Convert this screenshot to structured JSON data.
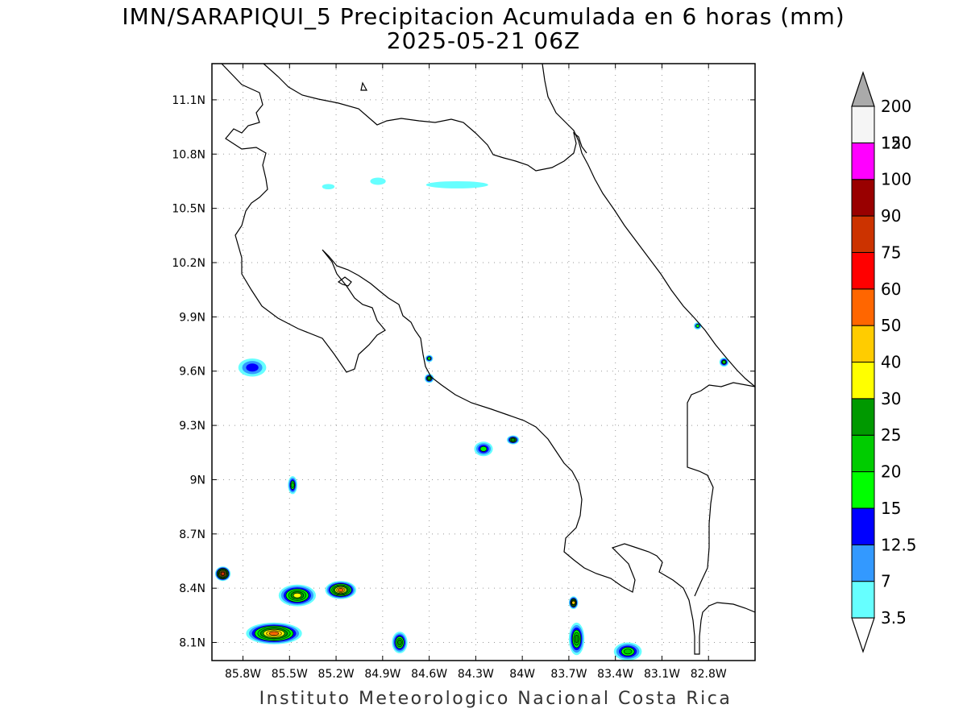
{
  "title": "IMN/SARAPIQUI_5 Precipitacion Acumulada en 6 horas (mm)",
  "subtitle": "2025-05-21 06Z",
  "footer": "Instituto Meteorologico Nacional Costa Rica",
  "map": {
    "lon_range": [
      -86.0,
      -82.5
    ],
    "lat_range": [
      8.0,
      11.3
    ],
    "lon_ticks": [
      {
        "value": -85.8,
        "label": "85.8W"
      },
      {
        "value": -85.5,
        "label": "85.5W"
      },
      {
        "value": -85.2,
        "label": "85.2W"
      },
      {
        "value": -84.9,
        "label": "84.9W"
      },
      {
        "value": -84.6,
        "label": "84.6W"
      },
      {
        "value": -84.3,
        "label": "84.3W"
      },
      {
        "value": -84.0,
        "label": "84W"
      },
      {
        "value": -83.7,
        "label": "83.7W"
      },
      {
        "value": -83.4,
        "label": "83.4W"
      },
      {
        "value": -83.1,
        "label": "83.1W"
      },
      {
        "value": -82.8,
        "label": "82.8W"
      }
    ],
    "lat_ticks": [
      {
        "value": 11.1,
        "label": "11.1N"
      },
      {
        "value": 10.8,
        "label": "10.8N"
      },
      {
        "value": 10.5,
        "label": "10.5N"
      },
      {
        "value": 10.2,
        "label": "10.2N"
      },
      {
        "value": 9.9,
        "label": "9.9N"
      },
      {
        "value": 9.6,
        "label": "9.6N"
      },
      {
        "value": 9.3,
        "label": "9.3N"
      },
      {
        "value": 9.0,
        "label": "9N"
      },
      {
        "value": 8.7,
        "label": "8.7N"
      },
      {
        "value": 8.4,
        "label": "8.4N"
      },
      {
        "value": 8.1,
        "label": "8.1N"
      }
    ],
    "grid": true
  },
  "colorbar": {
    "levels": [
      {
        "label": "3.5",
        "color": "#66ffff"
      },
      {
        "label": "7",
        "color": "#3399ff"
      },
      {
        "label": "12.5",
        "color": "#0000ff"
      },
      {
        "label": "15",
        "color": "#00ff00"
      },
      {
        "label": "20",
        "color": "#00cc00"
      },
      {
        "label": "25",
        "color": "#009900"
      },
      {
        "label": "30",
        "color": "#ffff00"
      },
      {
        "label": "40",
        "color": "#ffcc00"
      },
      {
        "label": "50",
        "color": "#ff6600"
      },
      {
        "label": "60",
        "color": "#ff0000"
      },
      {
        "label": "75",
        "color": "#cc3300"
      },
      {
        "label": "90",
        "color": "#990000"
      },
      {
        "label": "100",
        "color": "#ff00ff"
      },
      {
        "label": "120",
        "color": "#9933cc"
      },
      {
        "label": "150",
        "color": "#f5f5f5"
      },
      {
        "label": "200",
        "color": "#aaaaaa"
      }
    ]
  },
  "precip_areas": [
    {
      "lon": -85.72,
      "lat": 9.62,
      "rx": 0.06,
      "ry": 0.035,
      "level": 6
    },
    {
      "lon": -85.74,
      "lat": 9.62,
      "rx": 0.09,
      "ry": 0.05,
      "level": 2
    },
    {
      "lon": -85.48,
      "lat": 8.97,
      "rx": 0.03,
      "ry": 0.05,
      "level": 4
    },
    {
      "lon": -85.45,
      "lat": 8.36,
      "rx": 0.12,
      "ry": 0.06,
      "level": 6
    },
    {
      "lon": -85.17,
      "lat": 8.39,
      "rx": 0.1,
      "ry": 0.05,
      "level": 8
    },
    {
      "lon": -85.93,
      "lat": 8.48,
      "rx": 0.05,
      "ry": 0.04,
      "level": 10
    },
    {
      "lon": -85.6,
      "lat": 8.15,
      "rx": 0.18,
      "ry": 0.06,
      "level": 8
    },
    {
      "lon": -84.6,
      "lat": 9.56,
      "rx": 0.03,
      "ry": 0.025,
      "level": 5
    },
    {
      "lon": -84.6,
      "lat": 9.67,
      "rx": 0.025,
      "ry": 0.02,
      "level": 4
    },
    {
      "lon": -84.25,
      "lat": 9.17,
      "rx": 0.06,
      "ry": 0.04,
      "level": 3
    },
    {
      "lon": -84.06,
      "lat": 9.22,
      "rx": 0.04,
      "ry": 0.025,
      "level": 5
    },
    {
      "lon": -83.67,
      "lat": 8.32,
      "rx": 0.03,
      "ry": 0.035,
      "level": 7
    },
    {
      "lon": -83.65,
      "lat": 8.12,
      "rx": 0.05,
      "ry": 0.09,
      "level": 5
    },
    {
      "lon": -83.32,
      "lat": 8.05,
      "rx": 0.09,
      "ry": 0.05,
      "level": 4
    },
    {
      "lon": -82.87,
      "lat": 9.85,
      "rx": 0.025,
      "ry": 0.02,
      "level": 3
    },
    {
      "lon": -82.7,
      "lat": 9.65,
      "rx": 0.03,
      "ry": 0.025,
      "level": 4
    },
    {
      "lon": -84.79,
      "lat": 8.1,
      "rx": 0.05,
      "ry": 0.06,
      "level": 5
    },
    {
      "lon": -84.42,
      "lat": 10.63,
      "rx": 0.2,
      "ry": 0.02,
      "level": 0
    },
    {
      "lon": -84.93,
      "lat": 10.65,
      "rx": 0.05,
      "ry": 0.02,
      "level": 0
    },
    {
      "lon": -85.25,
      "lat": 10.62,
      "rx": 0.04,
      "ry": 0.015,
      "level": 0
    }
  ]
}
